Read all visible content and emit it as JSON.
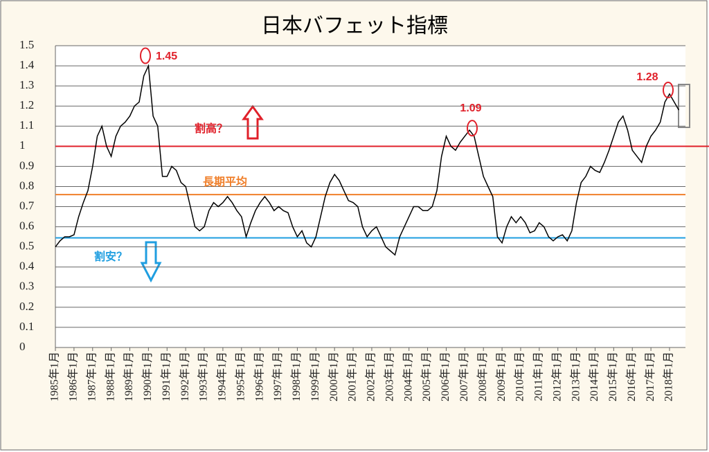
{
  "chart_data": {
    "type": "line",
    "title": "日本バフェット指標",
    "categories": [
      "1985年1月",
      null,
      null,
      null,
      "1986年1月",
      null,
      null,
      null,
      "1987年1月",
      null,
      null,
      null,
      "1988年1月",
      null,
      null,
      null,
      "1989年1月",
      null,
      null,
      null,
      "1990年1月",
      null,
      null,
      null,
      "1991年1月",
      null,
      null,
      null,
      "1992年1月",
      null,
      null,
      null,
      "1993年1月",
      null,
      null,
      null,
      "1994年1月",
      null,
      null,
      null,
      "1995年1月",
      null,
      null,
      null,
      "1996年1月",
      null,
      null,
      null,
      "1997年1月",
      null,
      null,
      null,
      "1998年1月",
      null,
      null,
      null,
      "1999年1月",
      null,
      null,
      null,
      "2000年1月",
      null,
      null,
      null,
      "2001年1月",
      null,
      null,
      null,
      "2002年1月",
      null,
      null,
      null,
      "2003年1月",
      null,
      null,
      null,
      "2004年1月",
      null,
      null,
      null,
      "2005年1月",
      null,
      null,
      null,
      "2006年1月",
      null,
      null,
      null,
      "2007年1月",
      null,
      null,
      null,
      "2008年1月",
      null,
      null,
      null,
      "2009年1月",
      null,
      null,
      null,
      "2010年1月",
      null,
      null,
      null,
      "2011年1月",
      null,
      null,
      null,
      "2012年1月",
      null,
      null,
      null,
      "2013年1月",
      null,
      null,
      null,
      "2014年1月",
      null,
      null,
      null,
      "2015年1月",
      null,
      null,
      null,
      "2016年1月",
      null,
      null,
      null,
      "2017年1月",
      null,
      null,
      null,
      "2018年1月",
      null,
      null
    ],
    "values": [
      0.5,
      0.53,
      0.55,
      0.55,
      0.56,
      0.65,
      0.72,
      0.78,
      0.9,
      1.05,
      1.1,
      1.0,
      0.95,
      1.05,
      1.1,
      1.12,
      1.15,
      1.2,
      1.22,
      1.35,
      1.4,
      1.15,
      1.1,
      0.85,
      0.85,
      0.9,
      0.88,
      0.82,
      0.8,
      0.7,
      0.6,
      0.58,
      0.6,
      0.68,
      0.72,
      0.7,
      0.72,
      0.75,
      0.72,
      0.68,
      0.65,
      0.55,
      0.62,
      0.68,
      0.72,
      0.75,
      0.72,
      0.68,
      0.7,
      0.68,
      0.67,
      0.6,
      0.55,
      0.58,
      0.52,
      0.5,
      0.55,
      0.65,
      0.75,
      0.82,
      0.86,
      0.83,
      0.78,
      0.73,
      0.72,
      0.7,
      0.6,
      0.55,
      0.58,
      0.6,
      0.55,
      0.5,
      0.48,
      0.46,
      0.55,
      0.6,
      0.65,
      0.7,
      0.7,
      0.68,
      0.68,
      0.7,
      0.78,
      0.95,
      1.05,
      1.0,
      0.98,
      1.02,
      1.05,
      1.08,
      1.05,
      0.95,
      0.85,
      0.8,
      0.75,
      0.55,
      0.52,
      0.6,
      0.65,
      0.62,
      0.65,
      0.62,
      0.57,
      0.58,
      0.62,
      0.6,
      0.55,
      0.53,
      0.55,
      0.56,
      0.53,
      0.58,
      0.72,
      0.82,
      0.85,
      0.9,
      0.88,
      0.87,
      0.92,
      0.98,
      1.05,
      1.12,
      1.15,
      1.08,
      0.98,
      0.95,
      0.92,
      1.0,
      1.05,
      1.08,
      1.12,
      1.22,
      1.26,
      1.22,
      1.18
    ],
    "color": "#000000",
    "ylim": [
      0,
      1.5
    ],
    "yticks": [
      0,
      0.1,
      0.2,
      0.3,
      0.4,
      0.5,
      0.6,
      0.7,
      0.8,
      0.9,
      1,
      1.1,
      1.2,
      1.3,
      1.4,
      1.5
    ],
    "grid": true,
    "reference_lines": [
      {
        "label": "割高？",
        "value": 1,
        "color": "#e0202a"
      },
      {
        "label": "長期平均",
        "value": 0.76,
        "color": "#f07f2a"
      },
      {
        "label": "割安？",
        "value": 0.545,
        "color": "#1f9ee0"
      }
    ],
    "peaks": [
      1.45,
      1.09,
      1.28
    ],
    "peak_color": "#e0202a"
  }
}
